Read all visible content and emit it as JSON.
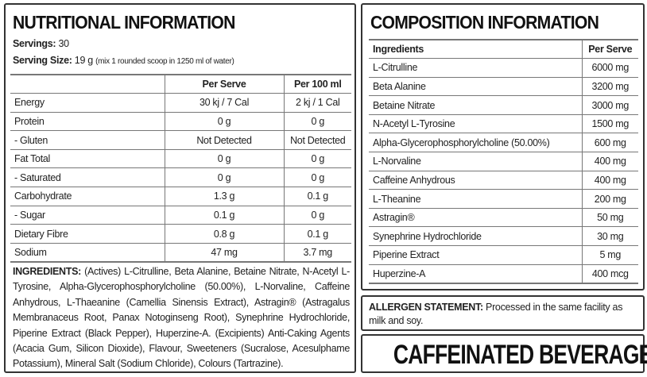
{
  "nutrition": {
    "title": "NUTRITIONAL INFORMATION",
    "servings_label": "Servings:",
    "servings_value": "30",
    "serving_size_label": "Serving Size:",
    "serving_size_value": "19 g",
    "serving_size_note": "(mix 1 rounded scoop in 1250 ml of water)",
    "headers": [
      "",
      "Per Serve",
      "Per 100 ml"
    ],
    "rows": [
      [
        "Energy",
        "30 kj / 7 Cal",
        "2 kj / 1 Cal"
      ],
      [
        "Protein",
        "0 g",
        "0 g"
      ],
      [
        "- Gluten",
        "Not Detected",
        "Not Detected"
      ],
      [
        "Fat Total",
        "0 g",
        "0 g"
      ],
      [
        "- Saturated",
        "0 g",
        "0 g"
      ],
      [
        "Carbohydrate",
        "1.3 g",
        "0.1 g"
      ],
      [
        "- Sugar",
        "0.1 g",
        "0 g"
      ],
      [
        "Dietary Fibre",
        "0.8 g",
        "0.1 g"
      ],
      [
        "Sodium",
        "47 mg",
        "3.7 mg"
      ]
    ],
    "ingredients_label": "INGREDIENTS:",
    "ingredients_text": "(Actives) L-Citrulline, Beta Alanine, Betaine Nitrate, N-Acetyl L-Tyrosine, Alpha-Glycerophosphorylcholine (50.00%), L-Norvaline, Caffeine Anhydrous, L-Thaeanine (Camellia Sinensis Extract), Astragin® (Astragalus Membranaceus Root, Panax Notoginseng Root), Synephrine Hydrochloride, Piperine Extract (Black Pepper), Huperzine-A. (Excipients) Anti-Caking Agents (Acacia Gum, Silicon Dioxide), Flavour, Sweeteners (Sucralose, Acesulphame Potassium), Mineral Salt (Sodium Chloride), Colours (Tartrazine)."
  },
  "composition": {
    "title": "COMPOSITION INFORMATION",
    "headers": [
      "Ingredients",
      "Per Serve"
    ],
    "rows": [
      [
        "L-Citrulline",
        "6000 mg"
      ],
      [
        "Beta Alanine",
        "3200 mg"
      ],
      [
        "Betaine Nitrate",
        "3000 mg"
      ],
      [
        "N-Acetyl L-Tyrosine",
        "1500 mg"
      ],
      [
        "Alpha-Glycerophosphorylcholine (50.00%)",
        "600 mg"
      ],
      [
        "L-Norvaline",
        "400 mg"
      ],
      [
        "Caffeine Anhydrous",
        "400 mg"
      ],
      [
        "L-Theanine",
        "200 mg"
      ],
      [
        "Astragin®",
        "50 mg"
      ],
      [
        "Synephrine Hydrochloride",
        "30 mg"
      ],
      [
        "Piperine Extract",
        "5 mg"
      ],
      [
        "Huperzine-A",
        "400 mcg"
      ]
    ]
  },
  "allergen": {
    "label": "ALLERGEN STATEMENT:",
    "text": "Processed in the same facility as milk and soy."
  },
  "banner": {
    "text": "CAFFEINATED BEVERAGE"
  }
}
